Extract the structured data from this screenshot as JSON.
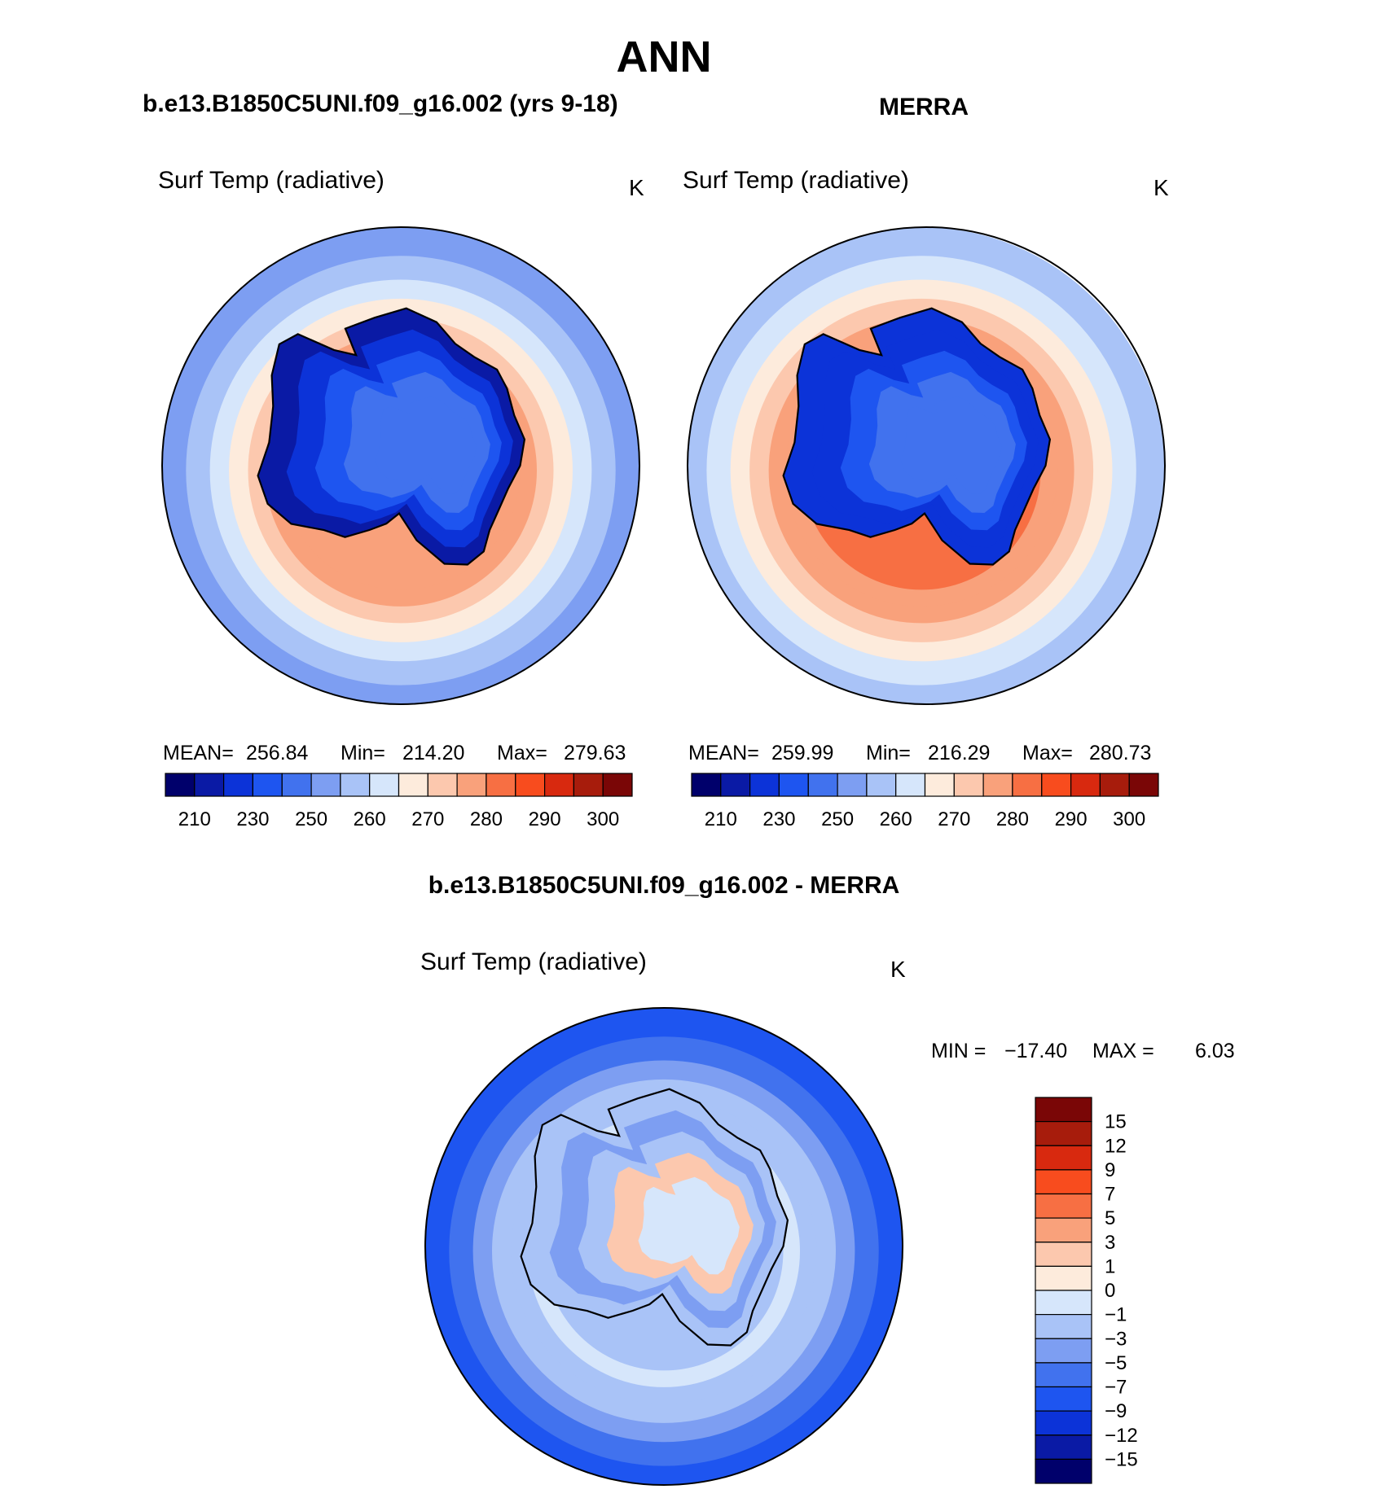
{
  "figure": {
    "season": "ANN",
    "left_title": "b.e13.B1850C5UNI.f09_g16.002 (yrs 9-18)",
    "right_title": "MERRA",
    "diff_title": "b.e13.B1850C5UNI.f09_g16.002 - MERRA"
  },
  "chart_data": [
    {
      "type": "heatmap",
      "id": "model",
      "variable": "Surf Temp (radiative)",
      "units": "K",
      "stats": {
        "mean_label": "MEAN=",
        "mean": "256.84",
        "min_label": "Min=",
        "min": "214.20",
        "max_label": "Max=",
        "max": "279.63"
      },
      "levels": [
        210,
        220,
        230,
        240,
        250,
        255,
        260,
        265,
        270,
        275,
        280,
        285,
        290,
        295,
        300
      ],
      "tick_labels": [
        "210",
        "230",
        "250",
        "260",
        "270",
        "280",
        "290",
        "300"
      ],
      "colors": [
        "#00006b",
        "#0a1aa5",
        "#0c33d8",
        "#1e55f0",
        "#4172ee",
        "#7d9ef2",
        "#a9c3f7",
        "#d6e6fb",
        "#fdebdc",
        "#fcc8ae",
        "#f9a17b",
        "#f76f43",
        "#f84c1e",
        "#d8290f",
        "#a71c0c",
        "#7a0606"
      ],
      "field": {
        "land_bands": [
          218,
          226,
          234,
          241,
          246
        ],
        "ocean_bands": [
          252,
          257,
          262,
          267,
          272,
          276,
          278
        ]
      }
    },
    {
      "type": "heatmap",
      "id": "obs",
      "variable": "Surf Temp (radiative)",
      "units": "K",
      "stats": {
        "mean_label": "MEAN=",
        "mean": "259.99",
        "min_label": "Min=",
        "min": "216.29",
        "max_label": "Max=",
        "max": "280.73"
      },
      "levels": [
        210,
        220,
        230,
        240,
        250,
        255,
        260,
        265,
        270,
        275,
        280,
        285,
        290,
        295,
        300
      ],
      "tick_labels": [
        "210",
        "230",
        "250",
        "260",
        "270",
        "280",
        "290",
        "300"
      ],
      "colors": [
        "#00006b",
        "#0a1aa5",
        "#0c33d8",
        "#1e55f0",
        "#4172ee",
        "#7d9ef2",
        "#a9c3f7",
        "#d6e6fb",
        "#fdebdc",
        "#fcc8ae",
        "#f9a17b",
        "#f76f43",
        "#f84c1e",
        "#d8290f",
        "#a71c0c",
        "#7a0606"
      ],
      "field": {
        "land_bands": [
          222,
          229,
          236,
          243,
          248
        ],
        "ocean_bands": [
          258,
          262,
          267,
          271,
          275,
          278,
          280
        ]
      }
    },
    {
      "type": "heatmap",
      "id": "diff",
      "variable": "Surf Temp (radiative)",
      "units": "K",
      "stats": {
        "min_label": "MIN =",
        "min": "−17.40",
        "max_label": "MAX =",
        "max": "6.03"
      },
      "levels": [
        -15,
        -12,
        -9,
        -7,
        -5,
        -3,
        -1,
        0,
        1,
        3,
        5,
        7,
        9,
        12,
        15
      ],
      "tick_labels": [
        "15",
        "12",
        "9",
        "7",
        "5",
        "3",
        "1",
        "0",
        "−1",
        "−3",
        "−5",
        "−7",
        "−9",
        "−12",
        "−15"
      ],
      "colors": [
        "#00006b",
        "#0a1aa5",
        "#0c33d8",
        "#1e55f0",
        "#4172ee",
        "#7d9ef2",
        "#a9c3f7",
        "#d6e6fb",
        "#fdebdc",
        "#fcc8ae",
        "#f9a17b",
        "#f76f43",
        "#f84c1e",
        "#d8290f",
        "#a71c0c",
        "#7a0606"
      ],
      "field": {
        "land_bands": [
          -2,
          -4,
          -2,
          1,
          -1
        ],
        "ocean_bands": [
          -8,
          -6,
          -4,
          -3,
          -2,
          -1,
          -3
        ]
      }
    }
  ]
}
